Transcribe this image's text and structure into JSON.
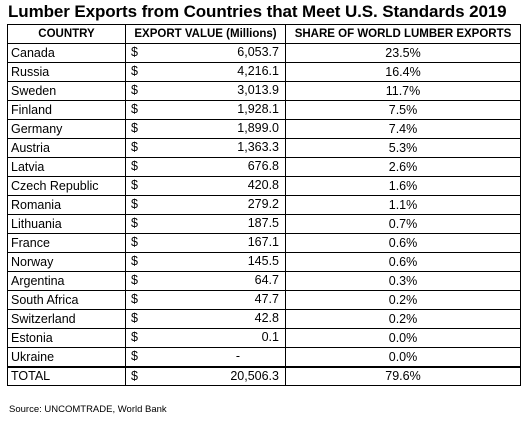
{
  "title": "Lumber Exports from Countries that Meet U.S. Standards 2019",
  "headers": {
    "country": "COUNTRY",
    "export": "EXPORT VALUE (Millions)",
    "share": "SHARE OF WORLD LUMBER EXPORTS"
  },
  "currency_symbol": "$",
  "rows": [
    {
      "country": "Canada",
      "export": "6,053.7",
      "share": "23.5%"
    },
    {
      "country": "Russia",
      "export": "4,216.1",
      "share": "16.4%"
    },
    {
      "country": "Sweden",
      "export": "3,013.9",
      "share": "11.7%"
    },
    {
      "country": "Finland",
      "export": "1,928.1",
      "share": "7.5%"
    },
    {
      "country": "Germany",
      "export": "1,899.0",
      "share": "7.4%"
    },
    {
      "country": "Austria",
      "export": "1,363.3",
      "share": "5.3%"
    },
    {
      "country": "Latvia",
      "export": "676.8",
      "share": "2.6%"
    },
    {
      "country": "Czech Republic",
      "export": "420.8",
      "share": "1.6%"
    },
    {
      "country": "Romania",
      "export": "279.2",
      "share": "1.1%"
    },
    {
      "country": "Lithuania",
      "export": "187.5",
      "share": "0.7%"
    },
    {
      "country": "France",
      "export": "167.1",
      "share": "0.6%"
    },
    {
      "country": "Norway",
      "export": "145.5",
      "share": "0.6%"
    },
    {
      "country": "Argentina",
      "export": "64.7",
      "share": "0.3%"
    },
    {
      "country": "South Africa",
      "export": "47.7",
      "share": "0.2%"
    },
    {
      "country": "Switzerland",
      "export": "42.8",
      "share": "0.2%"
    },
    {
      "country": "Estonia",
      "export": "0.1",
      "share": "0.0%"
    },
    {
      "country": "Ukraine",
      "export": "-",
      "share": "0.0%"
    }
  ],
  "total": {
    "country": "TOTAL",
    "export": "20,506.3",
    "share": "79.6%"
  },
  "source": "Source: UNCOMTRADE, World Bank"
}
